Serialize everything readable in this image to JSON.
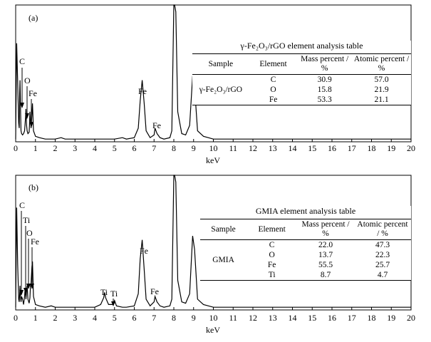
{
  "chart_data": [
    {
      "type": "line",
      "panel_label": "(a)",
      "xlabel": "keV",
      "xlim": [
        0,
        20
      ],
      "xticks": [
        0,
        1,
        2,
        3,
        4,
        5,
        6,
        7,
        8,
        9,
        10,
        11,
        12,
        13,
        14,
        15,
        16,
        17,
        18,
        19,
        20
      ],
      "grid": false,
      "series": [
        {
          "x": [
            0,
            0.05,
            0.1,
            0.15,
            0.18,
            0.2,
            0.22,
            0.25,
            0.27,
            0.3,
            0.35,
            0.4,
            0.45,
            0.5,
            0.52,
            0.55,
            0.58,
            0.62,
            0.68,
            0.7,
            0.72,
            0.75,
            0.78,
            0.82,
            0.85,
            0.9,
            1.0,
            1.2,
            1.5,
            2.0,
            2.3,
            2.5,
            3.0,
            3.5,
            4.0,
            4.5,
            5.0,
            5.4,
            5.6,
            6.0,
            6.2,
            6.3,
            6.4,
            6.5,
            6.6,
            6.8,
            7.0,
            7.05,
            7.15,
            7.3,
            7.5,
            7.8,
            7.9,
            8.0,
            8.04,
            8.1,
            8.2,
            8.4,
            8.6,
            8.8,
            8.95,
            9.05,
            9.2,
            9.5,
            10,
            12,
            14,
            16,
            18,
            20
          ],
          "y": [
            2,
            72,
            44,
            14,
            10,
            35,
            45,
            22,
            8,
            6,
            5,
            6,
            8,
            18,
            24,
            12,
            8,
            6,
            7,
            12,
            22,
            16,
            10,
            20,
            28,
            8,
            4,
            3,
            2,
            2,
            3,
            2,
            2,
            2,
            2,
            2,
            2,
            3,
            2,
            3,
            10,
            30,
            45,
            28,
            8,
            3,
            5,
            10,
            6,
            3,
            2,
            3,
            8,
            100,
            100,
            95,
            22,
            6,
            5,
            12,
            48,
            40,
            8,
            4,
            2,
            2,
            2,
            2,
            2,
            2
          ]
        }
      ],
      "annotations": [
        "C",
        "O",
        "Fe",
        "Fe",
        "Fe"
      ]
    },
    {
      "type": "line",
      "panel_label": "(b)",
      "xlabel": "keV",
      "xlim": [
        0,
        20
      ],
      "xticks": [
        0,
        1,
        2,
        3,
        4,
        5,
        6,
        7,
        8,
        9,
        10,
        11,
        12,
        13,
        14,
        15,
        16,
        17,
        18,
        19,
        20
      ],
      "grid": false,
      "series": [
        {
          "x": [
            0,
            0.05,
            0.1,
            0.15,
            0.18,
            0.2,
            0.22,
            0.25,
            0.27,
            0.3,
            0.35,
            0.4,
            0.45,
            0.48,
            0.5,
            0.52,
            0.55,
            0.58,
            0.62,
            0.68,
            0.72,
            0.75,
            0.78,
            0.82,
            0.85,
            0.9,
            1.0,
            1.2,
            1.5,
            1.8,
            2.0,
            2.5,
            3.0,
            3.5,
            4.0,
            4.3,
            4.45,
            4.5,
            4.55,
            4.7,
            4.93,
            5.0,
            5.1,
            5.4,
            5.6,
            6.0,
            6.2,
            6.3,
            6.4,
            6.5,
            6.6,
            6.8,
            7.0,
            7.05,
            7.15,
            7.3,
            7.5,
            7.8,
            7.9,
            8.0,
            8.04,
            8.1,
            8.2,
            8.4,
            8.6,
            8.8,
            8.95,
            9.05,
            9.2,
            9.5,
            10,
            12,
            14,
            16,
            18,
            20
          ],
          "y": [
            2,
            76,
            34,
            8,
            6,
            12,
            18,
            9,
            6,
            10,
            8,
            4,
            10,
            16,
            12,
            8,
            14,
            18,
            8,
            5,
            9,
            18,
            20,
            32,
            36,
            10,
            4,
            3,
            2,
            3,
            2,
            2,
            2,
            2,
            2,
            4,
            9,
            13,
            9,
            4,
            4,
            7,
            3,
            2,
            2,
            3,
            12,
            38,
            52,
            30,
            8,
            3,
            6,
            10,
            6,
            3,
            2,
            3,
            8,
            100,
            100,
            95,
            22,
            6,
            5,
            12,
            55,
            45,
            8,
            4,
            2,
            2,
            2,
            2,
            2,
            2
          ]
        }
      ],
      "annotations": [
        "C",
        "Ti",
        "O",
        "Fe",
        "Ti",
        "Ti",
        "Fe",
        "Fe"
      ]
    }
  ],
  "tables": [
    {
      "title": "γ-Fe₂O₃/rGO element analysis table",
      "headers": [
        "Sample",
        "Element",
        "Mass percent / %",
        "Atomic percent / %"
      ],
      "sample": "γ-Fe₂O₃/rGO",
      "rows": [
        [
          "C",
          "30.9",
          "57.0"
        ],
        [
          "O",
          "15.8",
          "21.9"
        ],
        [
          "Fe",
          "53.3",
          "21.1"
        ]
      ]
    },
    {
      "title": "GMIA element analysis table",
      "headers": [
        "Sample",
        "Element",
        "Mass percent / %",
        "Atomic percent / %"
      ],
      "sample": "GMIA",
      "rows": [
        [
          "C",
          "22.0",
          "47.3"
        ],
        [
          "O",
          "13.7",
          "22.3"
        ],
        [
          "Fe",
          "55.5",
          "25.7"
        ],
        [
          "Ti",
          "8.7",
          "4.7"
        ]
      ]
    }
  ]
}
